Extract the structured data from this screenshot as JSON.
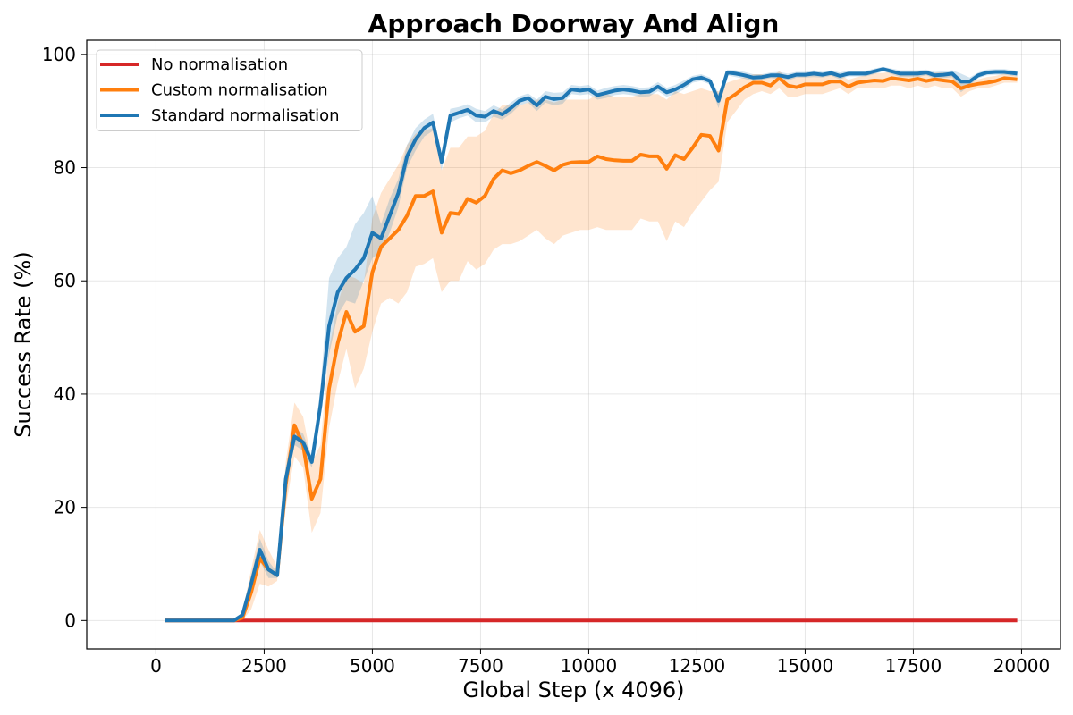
{
  "chart_data": {
    "type": "line",
    "title": "Approach Doorway And Align",
    "xlabel": "Global Step (x 4096)",
    "ylabel": "Success Rate (%)",
    "xlim": [
      -1600,
      20900
    ],
    "ylim": [
      -5,
      102.5
    ],
    "xticks": [
      0,
      2500,
      5000,
      7500,
      10000,
      12500,
      15000,
      17500,
      20000
    ],
    "xtick_labels": [
      "0",
      "2500",
      "5000",
      "7500",
      "10000",
      "12500",
      "15000",
      "17500",
      "20000"
    ],
    "yticks": [
      0,
      20,
      40,
      60,
      80,
      100
    ],
    "ytick_labels": [
      "0",
      "20",
      "40",
      "60",
      "80",
      "100"
    ],
    "grid": true,
    "legend_position": "top-left",
    "series": [
      {
        "name": "No normalisation",
        "color": "#d62728",
        "x": [
          200,
          19900
        ],
        "y": [
          0,
          0
        ],
        "band_lo": [
          0,
          0
        ],
        "band_hi": [
          0,
          0
        ]
      },
      {
        "name": "Custom normalisation",
        "color": "#ff7f0e",
        "x": [
          200,
          1800,
          2000,
          2200,
          2400,
          2600,
          2800,
          3000,
          3200,
          3400,
          3600,
          3800,
          4000,
          4200,
          4400,
          4600,
          4800,
          5000,
          5200,
          5400,
          5600,
          5800,
          6000,
          6200,
          6400,
          6600,
          6800,
          7000,
          7200,
          7400,
          7600,
          7800,
          8000,
          8200,
          8400,
          8600,
          8800,
          9000,
          9200,
          9400,
          9600,
          9800,
          10000,
          10200,
          10400,
          10600,
          10800,
          11000,
          11200,
          11400,
          11600,
          11800,
          12000,
          12200,
          12400,
          12600,
          12800,
          13000,
          13200,
          13400,
          13600,
          13800,
          14000,
          14200,
          14400,
          14600,
          14800,
          15000,
          15200,
          15400,
          15600,
          15800,
          16000,
          16200,
          16400,
          16600,
          16800,
          17000,
          17200,
          17400,
          17600,
          17800,
          18000,
          18200,
          18400,
          18600,
          18800,
          19000,
          19200,
          19400,
          19600,
          19900
        ],
        "y": [
          0,
          0,
          0.5,
          5,
          11,
          9,
          8,
          24,
          34.5,
          31,
          21.5,
          25,
          41,
          49,
          54.5,
          51,
          52,
          61.5,
          66,
          67.5,
          69,
          71.5,
          75,
          75,
          75.8,
          68.5,
          72,
          71.8,
          74.5,
          73.8,
          75,
          78,
          79.5,
          79,
          79.5,
          80.3,
          81,
          80.3,
          79.5,
          80.5,
          80.9,
          81,
          81,
          82,
          81.5,
          81.3,
          81.2,
          81.2,
          82.3,
          82,
          82,
          79.8,
          82.2,
          81.5,
          83.5,
          85.8,
          85.6,
          83,
          92,
          93,
          94.2,
          95,
          95,
          94.5,
          95.8,
          94.5,
          94.2,
          94.7,
          94.7,
          94.7,
          95.2,
          95.2,
          94.3,
          95,
          95.2,
          95.4,
          95.3,
          95.8,
          95.6,
          95.4,
          95.7,
          95.3,
          95.6,
          95.4,
          95.2,
          94,
          94.5,
          94.8,
          95,
          95.3,
          95.8,
          95.6
        ],
        "band_lo": [
          0,
          0,
          0,
          2,
          6.5,
          6,
          7,
          20,
          29,
          27,
          15.5,
          19,
          34,
          42,
          48,
          41,
          44.5,
          51,
          56,
          57,
          56,
          58,
          62.5,
          63,
          64,
          58,
          60,
          60,
          63.5,
          62,
          63,
          65.5,
          66.5,
          66.5,
          67,
          68,
          69,
          67.5,
          66.5,
          68,
          68.5,
          69,
          69,
          69.5,
          69,
          69,
          69,
          69,
          71,
          70.5,
          70.5,
          67,
          70.5,
          69.5,
          72,
          74,
          76,
          77.5,
          88,
          90,
          92,
          93,
          93.5,
          93,
          94,
          92.5,
          92.5,
          93,
          93,
          93,
          93.5,
          94,
          93,
          94,
          94,
          94,
          94,
          94.5,
          94.5,
          94,
          94.5,
          94,
          94.5,
          94,
          94,
          92.5,
          93.5,
          94,
          94,
          94.5,
          95,
          95
        ],
        "band_hi": [
          0,
          0,
          1.5,
          9,
          16,
          12.5,
          9.5,
          28,
          38.5,
          36,
          28,
          31,
          48,
          56,
          61,
          60.5,
          59.5,
          71,
          75.5,
          78,
          80.5,
          84,
          86,
          86.5,
          87,
          79.5,
          83.5,
          83.5,
          85.5,
          85.5,
          86.5,
          89.5,
          91,
          91,
          91,
          91.5,
          92,
          92,
          91.5,
          92,
          92,
          92,
          92,
          93,
          93,
          92.5,
          92.5,
          92.5,
          93,
          93,
          93,
          92,
          93.5,
          93,
          93.5,
          94,
          93.5,
          93.5,
          95,
          95.5,
          96,
          96.5,
          96.5,
          96,
          97,
          96,
          96,
          96.3,
          96.3,
          96.3,
          96.7,
          96.5,
          95.5,
          96,
          96.3,
          96.7,
          96.7,
          97,
          96.8,
          96.7,
          97,
          96.6,
          96.8,
          96.8,
          96.6,
          95.5,
          95.5,
          95.6,
          96,
          96.2,
          96.6,
          96.2
        ]
      },
      {
        "name": "Standard normalisation",
        "color": "#1f77b4",
        "x": [
          200,
          1800,
          2000,
          2200,
          2400,
          2600,
          2800,
          3000,
          3200,
          3400,
          3600,
          3800,
          4000,
          4200,
          4400,
          4600,
          4800,
          5000,
          5200,
          5400,
          5600,
          5800,
          6000,
          6200,
          6400,
          6600,
          6800,
          7000,
          7200,
          7400,
          7600,
          7800,
          8000,
          8200,
          8400,
          8600,
          8800,
          9000,
          9200,
          9400,
          9600,
          9800,
          10000,
          10200,
          10400,
          10600,
          10800,
          11000,
          11200,
          11400,
          11600,
          11800,
          12000,
          12200,
          12400,
          12600,
          12800,
          13000,
          13200,
          13400,
          13600,
          13800,
          14000,
          14200,
          14400,
          14600,
          14800,
          15000,
          15200,
          15400,
          15600,
          15800,
          16000,
          16200,
          16400,
          16600,
          16800,
          17000,
          17200,
          17400,
          17600,
          17800,
          18000,
          18200,
          18400,
          18600,
          18800,
          19000,
          19200,
          19400,
          19600,
          19900
        ],
        "y": [
          0,
          0,
          1,
          6.5,
          12.5,
          9,
          8,
          25,
          32.5,
          31.5,
          28,
          38,
          52,
          58,
          60.5,
          62,
          64,
          68.5,
          67.5,
          71.5,
          75.5,
          82,
          85,
          87,
          88,
          81,
          89.2,
          89.7,
          90.2,
          89.2,
          89,
          90,
          89.4,
          90.5,
          91.8,
          92.3,
          91,
          92.5,
          92.1,
          92.3,
          93.8,
          93.6,
          93.8,
          92.8,
          93.2,
          93.6,
          93.8,
          93.6,
          93.3,
          93.4,
          94.3,
          93.3,
          93.8,
          94.6,
          95.6,
          95.9,
          95.3,
          91.8,
          96.8,
          96.6,
          96.3,
          95.9,
          96,
          96.3,
          96.3,
          96,
          96.4,
          96.4,
          96.6,
          96.4,
          96.7,
          96.2,
          96.6,
          96.6,
          96.6,
          97,
          97.4,
          97,
          96.6,
          96.6,
          96.6,
          96.8,
          96.3,
          96.4,
          96.6,
          95.2,
          95.2,
          96.3,
          96.8,
          96.9,
          96.9,
          96.6
        ],
        "band_lo": [
          0,
          0,
          0.5,
          5,
          10.5,
          7.5,
          7.5,
          23,
          31,
          30,
          27,
          36,
          47,
          54,
          56.5,
          56,
          60,
          64,
          65,
          68.5,
          73,
          80,
          83,
          85.5,
          86.5,
          79.5,
          88,
          88.7,
          89.2,
          88,
          88,
          89,
          88.5,
          89.5,
          91,
          91.5,
          90,
          91.5,
          91,
          91.3,
          93,
          92.8,
          93,
          92,
          92.3,
          92.8,
          93,
          92.8,
          92.5,
          92.6,
          93.5,
          92.5,
          93,
          93.8,
          95,
          95.3,
          94.7,
          90.5,
          96.3,
          96,
          95.7,
          95.3,
          95.5,
          95.8,
          95.7,
          95.4,
          95.9,
          95.9,
          96,
          95.9,
          96.2,
          95.6,
          96.1,
          96.1,
          96.1,
          96.5,
          97,
          96.5,
          96,
          96,
          96,
          96.3,
          95.7,
          95.8,
          96,
          93.3,
          94.5,
          95.8,
          96.3,
          96.4,
          96.4,
          96.1
        ],
        "band_hi": [
          0,
          0,
          1.5,
          8,
          14.5,
          10.5,
          8.5,
          27,
          34,
          33,
          29,
          41,
          60.5,
          64,
          66,
          70,
          72,
          75,
          70,
          74.5,
          78,
          84,
          87,
          88.5,
          89.5,
          82.5,
          90.4,
          90.7,
          91.2,
          90.4,
          90,
          91,
          90.3,
          91.5,
          92.6,
          93.1,
          92,
          93.5,
          93.2,
          93.3,
          94.6,
          94.4,
          94.6,
          93.6,
          94.1,
          94.4,
          94.6,
          94.4,
          94.1,
          94.2,
          95.1,
          94.1,
          94.6,
          95.4,
          96.2,
          96.5,
          95.9,
          93.1,
          97.3,
          97.2,
          96.9,
          96.5,
          96.5,
          96.8,
          96.9,
          96.6,
          96.9,
          96.9,
          97.2,
          96.9,
          97.2,
          96.8,
          97.1,
          97.1,
          97.1,
          97.5,
          97.8,
          97.5,
          97.2,
          97.2,
          97.2,
          97.3,
          96.9,
          97,
          97.2,
          96.6,
          95.9,
          96.8,
          97.3,
          97.4,
          97.4,
          97.1
        ]
      }
    ]
  }
}
